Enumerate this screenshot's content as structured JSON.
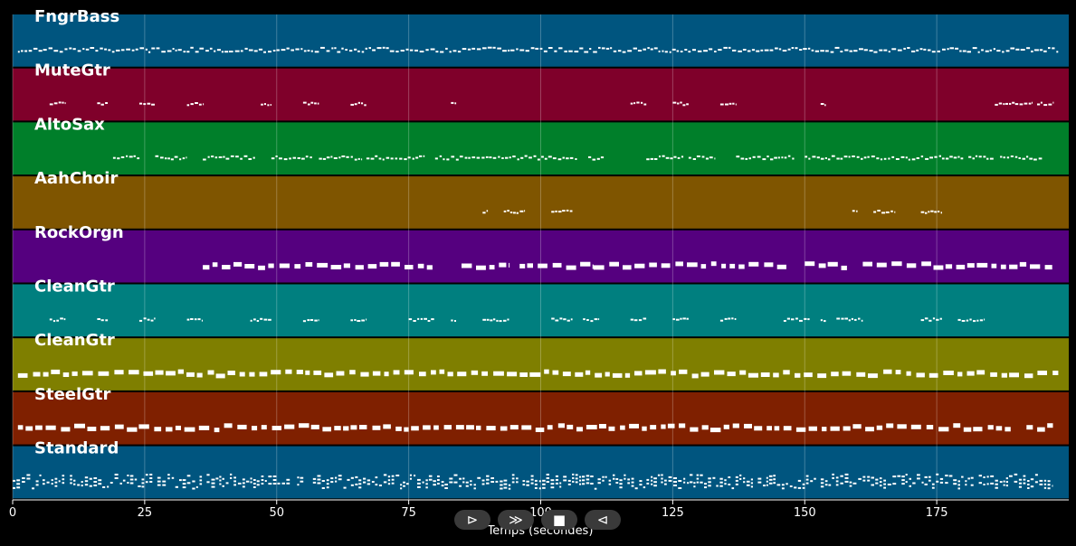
{
  "chart_data": {
    "type": "piano-roll",
    "title": "",
    "xlabel": "Temps (secondes)",
    "ylabel": "",
    "xlim": [
      0,
      200
    ],
    "xticks": [
      0,
      25,
      50,
      75,
      100,
      125,
      150,
      175
    ],
    "grid": true,
    "tracks": [
      {
        "name": "FngrBass",
        "color": "#00557f",
        "density": "dense",
        "note_ranges": [
          [
            1,
            198
          ]
        ]
      },
      {
        "name": "MuteGtr",
        "color": "#7f002a",
        "density": "sparse",
        "note_ranges": [
          [
            7,
            10
          ],
          [
            16,
            18
          ],
          [
            24,
            27
          ],
          [
            33,
            36
          ],
          [
            47,
            49
          ],
          [
            55,
            58
          ],
          [
            64,
            67
          ],
          [
            83,
            84
          ],
          [
            117,
            120
          ],
          [
            125,
            128
          ],
          [
            134,
            137
          ],
          [
            153,
            154
          ],
          [
            186,
            193
          ],
          [
            194,
            197
          ]
        ]
      },
      {
        "name": "AltoSax",
        "color": "#007f2a",
        "density": "medium",
        "note_ranges": [
          [
            19,
            24
          ],
          [
            27,
            33
          ],
          [
            36,
            46
          ],
          [
            49,
            57
          ],
          [
            58,
            66
          ],
          [
            67,
            78
          ],
          [
            80,
            107
          ],
          [
            109,
            112
          ],
          [
            120,
            127
          ],
          [
            128,
            133
          ],
          [
            137,
            148
          ],
          [
            150,
            180
          ],
          [
            181,
            186
          ],
          [
            187,
            195
          ]
        ]
      },
      {
        "name": "AahChoir",
        "color": "#7f5500",
        "density": "sparse",
        "note_ranges": [
          [
            89,
            90
          ],
          [
            93,
            97
          ],
          [
            102,
            106
          ],
          [
            159,
            160
          ],
          [
            163,
            167
          ],
          [
            172,
            176
          ]
        ]
      },
      {
        "name": "RockOrgn",
        "color": "#55007f",
        "density": "heavy",
        "note_ranges": [
          [
            36,
            80
          ],
          [
            85,
            94
          ],
          [
            96,
            110
          ],
          [
            110,
            147
          ],
          [
            150,
            158
          ],
          [
            161,
            197
          ]
        ]
      },
      {
        "name": "CleanGtr",
        "color": "#007f7f",
        "density": "sparse",
        "note_ranges": [
          [
            7,
            10
          ],
          [
            16,
            18
          ],
          [
            24,
            27
          ],
          [
            33,
            36
          ],
          [
            45,
            49
          ],
          [
            55,
            58
          ],
          [
            64,
            67
          ],
          [
            75,
            80
          ],
          [
            83,
            84
          ],
          [
            89,
            94
          ],
          [
            102,
            106
          ],
          [
            108,
            111
          ],
          [
            117,
            120
          ],
          [
            125,
            128
          ],
          [
            134,
            137
          ],
          [
            146,
            151
          ],
          [
            153,
            154
          ],
          [
            156,
            161
          ],
          [
            172,
            176
          ],
          [
            179,
            184
          ]
        ]
      },
      {
        "name": "CleanGtr",
        "color": "#7f7f00",
        "density": "heavy",
        "note_ranges": [
          [
            1,
            198
          ]
        ]
      },
      {
        "name": "SteelGtr",
        "color": "#7f2000",
        "density": "heavy",
        "note_ranges": [
          [
            1,
            189
          ],
          [
            192,
            197
          ]
        ]
      },
      {
        "name": "Standard",
        "color": "#00557f",
        "density": "drums",
        "note_ranges": [
          [
            0,
            197
          ]
        ]
      }
    ]
  },
  "controls": [
    {
      "name": "play-button",
      "glyph": "⊳"
    },
    {
      "name": "next-button",
      "glyph": "≫"
    },
    {
      "name": "stop-button",
      "glyph": "■"
    },
    {
      "name": "back-button",
      "glyph": "⊲"
    }
  ]
}
